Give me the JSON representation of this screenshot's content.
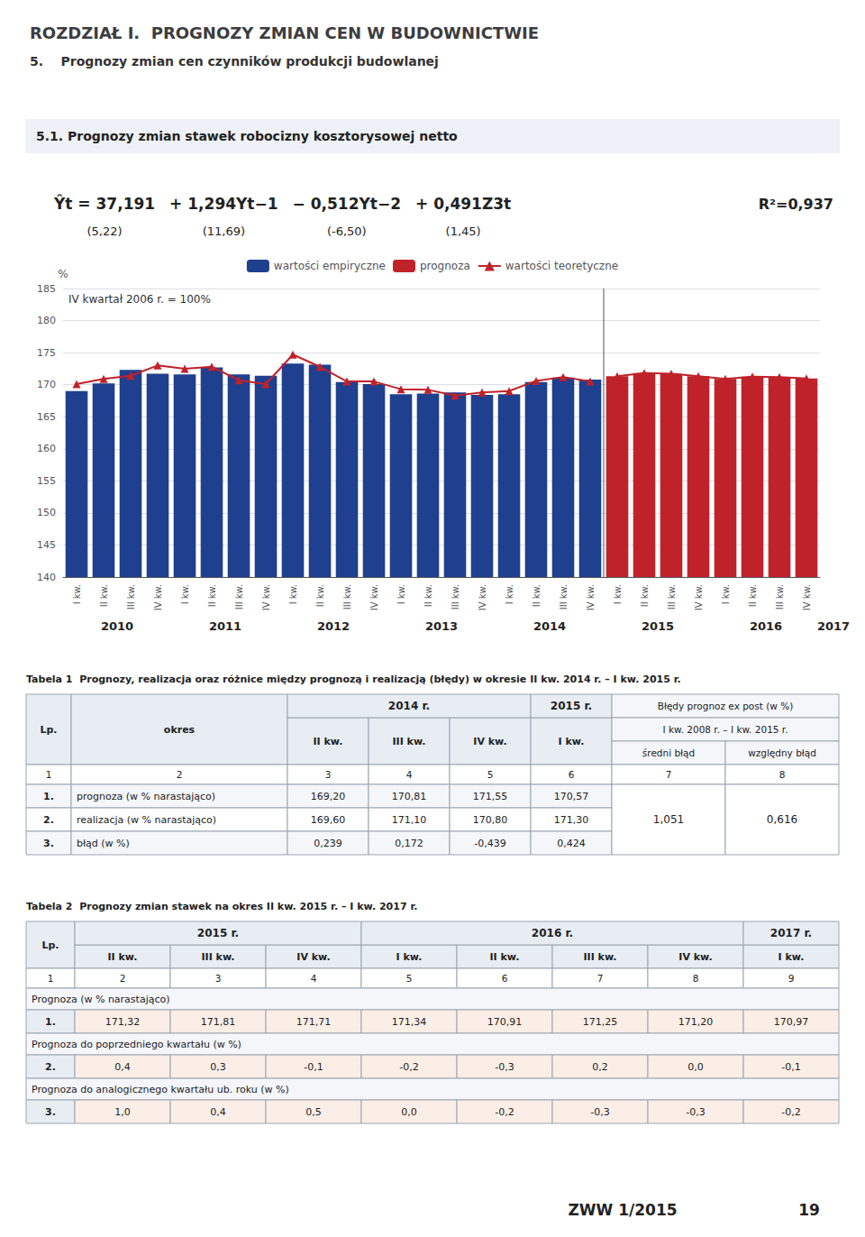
{
  "chart_data": [
    {
      "type": "bar",
      "title": "ROZDZIAŁ I.  PROGNOZY ZMIAN CEN W BUDOWNICTWIE",
      "subtitle": "5.    Prognozy zmian cen czynników produkcji budowlanej",
      "section_title": "5.1. Prognozy zmian stawek robocizny kosztorysowej netto",
      "formula_terms": [
        "Ŷt = 37,191",
        "+ 1,294Yt−1",
        "− 0,512Yt−2",
        "+ 0,491Z3t"
      ],
      "formula_t_stats": [
        "(5,22)",
        "(11,69)",
        "(-6,50)",
        "(1,45)"
      ],
      "r_squared": "R²=0,937",
      "note": "IV kwartał 2006 r. = 100%",
      "ylabel": "%",
      "categories": [
        "I kw.",
        "II kw.",
        "III kw.",
        "IV kw.",
        "I kw.",
        "II kw.",
        "III kw.",
        "IV kw.",
        "I kw.",
        "II kw.",
        "III kw.",
        "IV kw.",
        "I kw.",
        "II kw.",
        "III kw.",
        "IV kw.",
        "I kw.",
        "II kw.",
        "III kw.",
        "IV kw.",
        "I kw.",
        "II kw.",
        "III kw.",
        "IV kw.",
        "I kw.",
        "II kw.",
        "III kw.",
        "IV kw."
      ],
      "year_labels": [
        "2010",
        "2011",
        "2012",
        "2013",
        "2014",
        "2015",
        "2016",
        "2017"
      ],
      "series": [
        {
          "name": "wartości empiryczne",
          "type": "bar",
          "color": "#1f3f8f",
          "values": [
            169.0,
            170.2,
            172.3,
            171.7,
            171.6,
            172.7,
            171.6,
            171.4,
            173.3,
            173.1,
            170.4,
            170.1,
            168.5,
            168.6,
            168.8,
            168.4,
            168.5,
            170.4,
            171.1,
            170.8,
            null,
            null,
            null,
            null,
            null,
            null,
            null,
            null
          ]
        },
        {
          "name": "prognoza",
          "type": "bar",
          "color": "#c0222a",
          "values": [
            null,
            null,
            null,
            null,
            null,
            null,
            null,
            null,
            null,
            null,
            null,
            null,
            null,
            null,
            null,
            null,
            null,
            null,
            null,
            null,
            171.32,
            171.81,
            171.71,
            171.34,
            170.91,
            171.25,
            171.2,
            170.97
          ]
        },
        {
          "name": "wartości teoretyczne",
          "type": "line",
          "color": "#c0222a",
          "marker": "triangle",
          "values": [
            170.1,
            170.9,
            171.4,
            173.0,
            172.5,
            172.8,
            170.7,
            170.1,
            174.7,
            172.8,
            170.5,
            170.5,
            169.3,
            169.2,
            168.3,
            168.8,
            169.0,
            170.6,
            171.2,
            170.5,
            null,
            null,
            null,
            null,
            null,
            null,
            null,
            null
          ]
        },
        {
          "name": "wartości teoretyczne",
          "type": "line",
          "color": "#c0222a",
          "marker": "triangle",
          "values": [
            null,
            null,
            null,
            null,
            null,
            null,
            null,
            null,
            null,
            null,
            null,
            null,
            null,
            null,
            null,
            null,
            null,
            null,
            null,
            null,
            171.32,
            171.81,
            171.71,
            171.34,
            170.91,
            171.25,
            171.2,
            170.97
          ]
        }
      ],
      "ylim": [
        140,
        185
      ],
      "yticks": [
        140,
        145,
        150,
        155,
        160,
        165,
        170,
        175,
        180,
        185
      ],
      "grid": true,
      "legend": "top",
      "footer": "ZWW 1/2015",
      "page_number": "19"
    },
    {
      "type": "table",
      "title": "Tabela 1  Prognozy, realizacja oraz różnice między prognozą i realizacją (błędy) w okresie II kw. 2014 r. – I kw. 2015 r.",
      "row_header": [
        "Lp.",
        "okres"
      ],
      "column_groups": [
        {
          "label": "2014 r.",
          "columns": [
            "II kw.",
            "III kw.",
            "IV kw."
          ]
        },
        {
          "label": "2015 r.",
          "columns": [
            "I kw."
          ]
        }
      ],
      "error_header": {
        "label": "Błędy prognoz ex post (w %)",
        "period": "I kw. 2008 r. – I kw. 2015 r.",
        "columns": [
          "średni błąd",
          "względny błąd"
        ]
      },
      "column_numbers": [
        "1",
        "2",
        "3",
        "4",
        "5",
        "6",
        "7",
        "8"
      ],
      "rows": [
        {
          "lp": "1.",
          "label": "prognoza (w % narastająco)",
          "values": [
            "169,20",
            "170,81",
            "171,55",
            "170,57"
          ]
        },
        {
          "lp": "2.",
          "label": "realizacja (w % narastająco)",
          "values": [
            "169,60",
            "171,10",
            "170,80",
            "171,30"
          ]
        },
        {
          "lp": "3.",
          "label": "błąd (w %)",
          "values": [
            "0,239",
            "0,172",
            "-0,439",
            "0,424"
          ]
        }
      ],
      "errors": [
        "1,051",
        "0,616"
      ]
    },
    {
      "type": "table",
      "title": "Tabela 2  Prognozy zmian stawek na okres II kw. 2015 r. – I kw. 2017 r.",
      "row_header": [
        "Lp."
      ],
      "column_groups": [
        {
          "label": "2015 r.",
          "columns": [
            "II kw.",
            "III kw.",
            "IV kw."
          ]
        },
        {
          "label": "2016 r.",
          "columns": [
            "I kw.",
            "II kw.",
            "III kw.",
            "IV kw."
          ]
        },
        {
          "label": "2017 r.",
          "columns": [
            "I kw."
          ]
        }
      ],
      "column_numbers": [
        "1",
        "2",
        "3",
        "4",
        "5",
        "6",
        "7",
        "8",
        "9"
      ],
      "sections": [
        {
          "label": "Prognoza (w % narastająco)",
          "lp": "1.",
          "values": [
            "171,32",
            "171,81",
            "171,71",
            "171,34",
            "170,91",
            "171,25",
            "171,20",
            "170,97"
          ]
        },
        {
          "label": "Prognoza do poprzedniego kwartału (w %)",
          "lp": "2.",
          "values": [
            "0,4",
            "0,3",
            "-0,1",
            "-0,2",
            "-0,3",
            "0,2",
            "0,0",
            "-0,1"
          ]
        },
        {
          "label": "Prognoza do analogicznego kwartału ub. roku (w %)",
          "lp": "3.",
          "values": [
            "1,0",
            "0,4",
            "0,5",
            "0,0",
            "-0,2",
            "-0,3",
            "-0,3",
            "-0,2"
          ]
        }
      ]
    }
  ]
}
